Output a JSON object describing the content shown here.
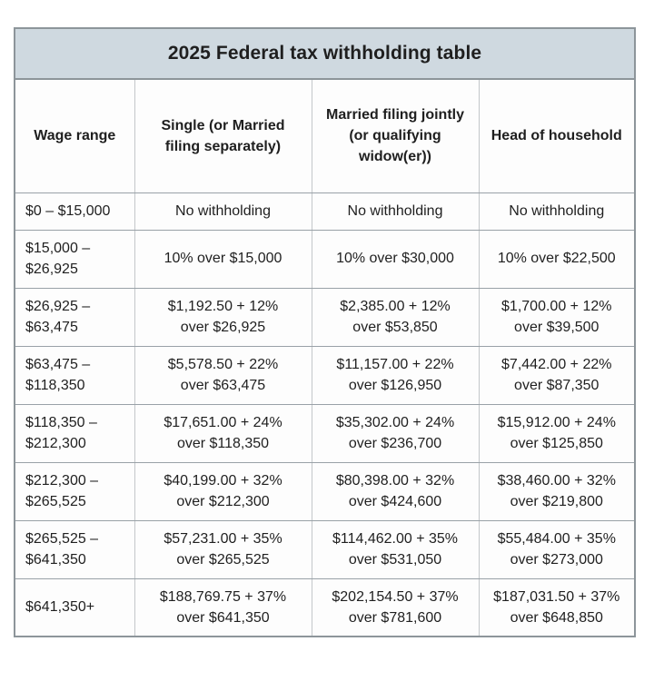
{
  "table": {
    "title": "2025 Federal tax withholding table",
    "headers": [
      "Wage range",
      "Single (or Married\nfiling separately)",
      "Married filing jointly\n(or qualifying\nwidow(er))",
      "Head of household"
    ],
    "rows": [
      [
        "$0 – $15,000",
        "No withholding",
        "No withholding",
        "No withholding"
      ],
      [
        "$15,000 –\n$26,925",
        "10% over $15,000",
        "10% over $30,000",
        "10% over $22,500"
      ],
      [
        "$26,925 –\n$63,475",
        "$1,192.50 + 12%\nover $26,925",
        "$2,385.00 + 12%\nover $53,850",
        "$1,700.00 + 12%\nover $39,500"
      ],
      [
        "$63,475 –\n$118,350",
        "$5,578.50 + 22%\nover $63,475",
        "$11,157.00 + 22%\nover $126,950",
        "$7,442.00 + 22%\nover $87,350"
      ],
      [
        "$118,350 –\n$212,300",
        "$17,651.00 + 24%\nover $118,350",
        "$35,302.00 + 24%\nover $236,700",
        "$15,912.00 + 24%\nover $125,850"
      ],
      [
        "$212,300 –\n$265,525",
        "$40,199.00 + 32%\nover $212,300",
        "$80,398.00 + 32%\nover $424,600",
        "$38,460.00 + 32%\nover $219,800"
      ],
      [
        "$265,525 –\n$641,350",
        "$57,231.00 + 35%\nover $265,525",
        "$114,462.00 + 35%\nover $531,050",
        "$55,484.00 + 35%\nover $273,000"
      ],
      [
        "$641,350+",
        "$188,769.75 + 37%\nover $641,350",
        "$202,154.50 + 37%\nover $781,600",
        "$187,031.50 + 37%\nover $648,850"
      ]
    ]
  },
  "colors": {
    "title_background": "#cfd9e0",
    "cell_background": "#fdfdfd",
    "border_h": "#99a1a7",
    "border_v": "#c3c7ca",
    "border_outer": "#8d959a",
    "text": "#1f1f1f",
    "page_background": "#ffffff"
  },
  "chart_data": {
    "type": "table",
    "title": "2025 Federal tax withholding table",
    "columns": [
      "Wage range",
      "Single (or Married filing separately)",
      "Married filing jointly (or qualifying widow(er))",
      "Head of household"
    ],
    "rows": [
      [
        "$0 – $15,000",
        "No withholding",
        "No withholding",
        "No withholding"
      ],
      [
        "$15,000 – $26,925",
        "10% over $15,000",
        "10% over $30,000",
        "10% over $22,500"
      ],
      [
        "$26,925 – $63,475",
        "$1,192.50 + 12% over $26,925",
        "$2,385.00 + 12% over $53,850",
        "$1,700.00 + 12% over $39,500"
      ],
      [
        "$63,475 – $118,350",
        "$5,578.50 + 22% over $63,475",
        "$11,157.00 + 22% over $126,950",
        "$7,442.00 + 22% over $87,350"
      ],
      [
        "$118,350 – $212,300",
        "$17,651.00 + 24% over $118,350",
        "$35,302.00 + 24% over $236,700",
        "$15,912.00 + 24% over $125,850"
      ],
      [
        "$212,300 – $265,525",
        "$40,199.00 + 32% over $212,300",
        "$80,398.00 + 32% over $424,600",
        "$38,460.00 + 32% over $219,800"
      ],
      [
        "$265,525 – $641,350",
        "$57,231.00 + 35% over $265,525",
        "$114,462.00 + 35% over $531,050",
        "$55,484.00 + 35% over $273,000"
      ],
      [
        "$641,350+",
        "$188,769.75 + 37% over $641,350",
        "$202,154.50 + 37% over $781,600",
        "$187,031.50 + 37% over $648,850"
      ]
    ]
  }
}
